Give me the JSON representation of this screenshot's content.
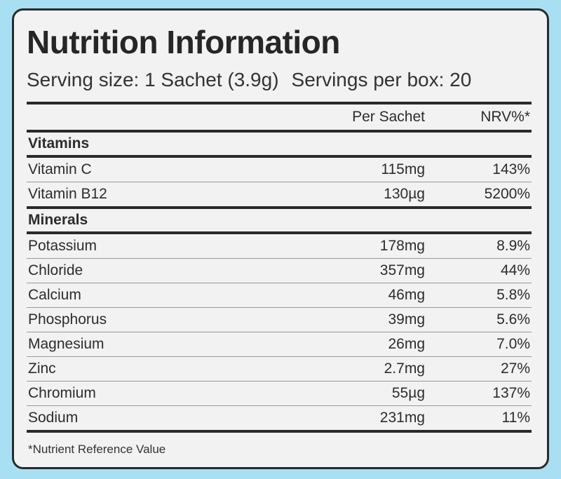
{
  "title": "Nutrition Information",
  "serving": {
    "size": "Serving size: 1 Sachet (3.9g)",
    "per_box": "Servings per box: 20"
  },
  "table": {
    "headers": {
      "per": "Per Sachet",
      "nrv": "NRV%*"
    },
    "vitamins": {
      "label": "Vitamins",
      "rows": [
        {
          "name": "Vitamin C",
          "per": "115mg",
          "nrv": "143%"
        },
        {
          "name": "Vitamin B12",
          "per": "130µg",
          "nrv": "5200%"
        }
      ]
    },
    "minerals": {
      "label": "Minerals",
      "rows": [
        {
          "name": "Potassium",
          "per": "178mg",
          "nrv": "8.9%"
        },
        {
          "name": "Chloride",
          "per": "357mg",
          "nrv": "44%"
        },
        {
          "name": "Calcium",
          "per": "46mg",
          "nrv": "5.8%"
        },
        {
          "name": "Phosphorus",
          "per": "39mg",
          "nrv": "5.6%"
        },
        {
          "name": "Magnesium",
          "per": "26mg",
          "nrv": "7.0%"
        },
        {
          "name": "Zinc",
          "per": "2.7mg",
          "nrv": "27%"
        },
        {
          "name": "Chromium",
          "per": "55µg",
          "nrv": "137%"
        },
        {
          "name": "Sodium",
          "per": "231mg",
          "nrv": "11%"
        }
      ]
    }
  },
  "footnote": "*Nutrient Reference Value",
  "colors": {
    "background": "#a9dff2",
    "panel": "#f2f2f2",
    "rule": "#2a2a2a"
  }
}
